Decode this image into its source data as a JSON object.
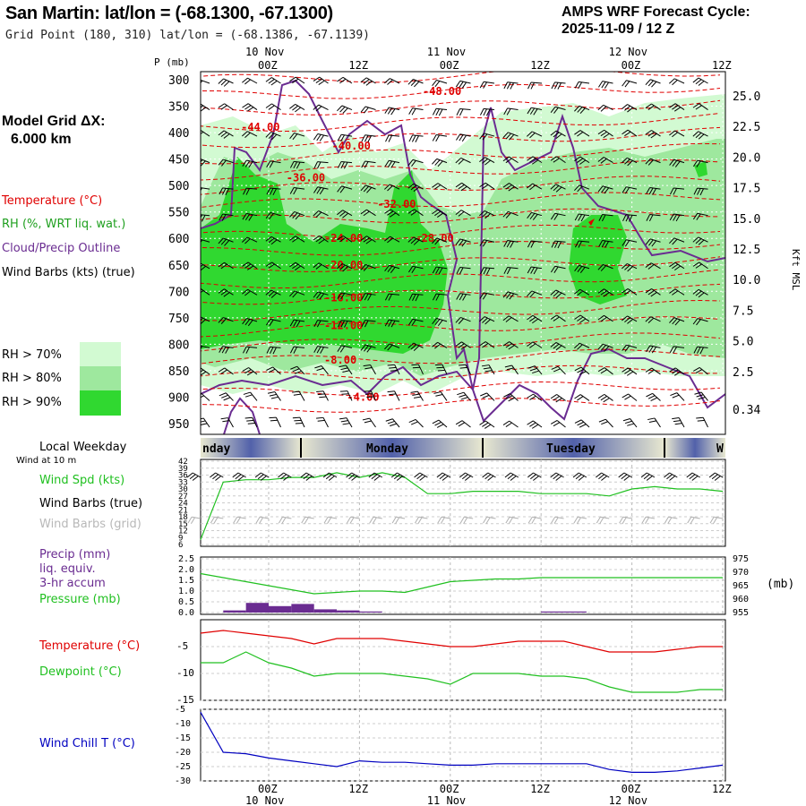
{
  "header": {
    "station_title": "San Martin:  lat/lon = (-68.1300, -67.1300)",
    "grid_point": "Grid Point (180, 310) lat/lon = (-68.1386, -67.1139)",
    "cycle_label": "AMPS WRF Forecast Cycle:",
    "cycle_value": "2025-11-09 / 12  Z"
  },
  "model_grid": {
    "label": "Model Grid ΔX:",
    "value": "6.000 km"
  },
  "colors": {
    "temperature": "#e00000",
    "rh": "#20a020",
    "cloud_outline": "#6a2c91",
    "wind_barbs_true": "#000000",
    "wind_barbs_grid": "#b0b0b0",
    "precip": "#6a2c91",
    "pressure": "#20c020",
    "dewpoint": "#20c020",
    "wind_chill": "#0000c0",
    "rh70": "#d2fad2",
    "rh80": "#9ee89e",
    "rh90": "#30d830"
  },
  "left_legend": {
    "temperature": "Temperature (°C)",
    "rh": "RH (%, WRT liq. wat.)",
    "cloud": "Cloud/Precip Outline",
    "wind": "Wind Barbs (kts) (true)",
    "rh70": "RH > 70%",
    "rh80": "RH > 80%",
    "rh90": "RH > 90%",
    "local_weekday": "Local Weekday",
    "wind_at": "Wind at 10 m",
    "wind_spd": "Wind Spd (kts)",
    "wind_barbs_true": "Wind Barbs (true)",
    "wind_barbs_grid": "Wind Barbs (grid)",
    "precip1": "Precip (mm)",
    "precip2": "liq. equiv.",
    "precip3": "3-hr accum",
    "pressure": "Pressure (mb)",
    "temperature2": "Temperature (°C)",
    "dewpoint": "Dewpoint (°C)",
    "windchill": "Wind Chill T (°C)"
  },
  "time_axis": {
    "hours": [
      "00Z",
      "12Z",
      "00Z",
      "12Z",
      "00Z",
      "12Z"
    ],
    "dates": [
      "10 Nov",
      "11 Nov",
      "12 Nov"
    ],
    "weekdays": [
      "nday",
      "Monday",
      "Tuesday",
      "W"
    ]
  },
  "chart_data": [
    {
      "type": "heatmap",
      "name": "vertical-cross-section",
      "ylabel": "P (mb)",
      "y2label": "Kft MSL",
      "pressure_ticks": [
        300,
        350,
        400,
        450,
        500,
        550,
        600,
        650,
        700,
        750,
        800,
        850,
        900,
        950
      ],
      "height_ticks": [
        "25.0",
        "22.5",
        "20.0",
        "17.5",
        "15.0",
        "12.5",
        "10.0",
        "7.5",
        "5.0",
        "2.5",
        "0.34"
      ],
      "temperature_contour_labels": [
        {
          "label": "-48.00",
          "hour": 22,
          "p": 322
        },
        {
          "label": "-44.00",
          "hour": -2,
          "p": 390
        },
        {
          "label": "-40.00",
          "hour": 10,
          "p": 425
        },
        {
          "label": "-36.00",
          "hour": 4,
          "p": 485
        },
        {
          "label": "-32.00",
          "hour": 16,
          "p": 535
        },
        {
          "label": "-28.00",
          "hour": 21,
          "p": 600
        },
        {
          "label": "-24.00",
          "hour": 9,
          "p": 600
        },
        {
          "label": "-20.00",
          "hour": 9,
          "p": 650
        },
        {
          "label": "-16.00",
          "hour": 9,
          "p": 712
        },
        {
          "label": "-12.00",
          "hour": 9,
          "p": 765
        },
        {
          "label": "-8.00",
          "hour": 9,
          "p": 830
        },
        {
          "label": "-4.00",
          "hour": 12,
          "p": 900
        }
      ]
    },
    {
      "type": "line",
      "name": "wind-speed",
      "ylabel": "Wind Spd (kts)",
      "yticks": [
        42,
        39,
        36,
        33,
        30,
        27,
        24,
        21,
        18,
        15,
        12,
        9,
        6
      ],
      "ylim": [
        6,
        42
      ],
      "x_hours": [
        -9,
        -6,
        -3,
        0,
        3,
        6,
        9,
        12,
        15,
        18,
        21,
        24,
        27,
        30,
        33,
        36,
        39,
        42,
        45,
        48,
        51,
        54,
        57,
        60
      ],
      "values": [
        8,
        33,
        34,
        34,
        35,
        35,
        37,
        35,
        37,
        35,
        28,
        28,
        29,
        29,
        29,
        28,
        28,
        28,
        27,
        30,
        31,
        30,
        30,
        29
      ]
    },
    {
      "type": "bar",
      "name": "precip-pressure",
      "ylabel": "Precip (mm)",
      "y2label": "(mb)",
      "precip_ticks": [
        "2.5",
        "2.0",
        "1.5",
        "1.0",
        "0.5",
        "0.0"
      ],
      "pressure_ticks": [
        975,
        970,
        965,
        960,
        955
      ],
      "precip_x_hours": [
        -6,
        -3,
        0,
        3,
        6,
        9,
        12,
        36,
        39
      ],
      "precip_values": [
        0.1,
        0.45,
        0.3,
        0.4,
        0.15,
        0.1,
        0.05,
        0.05,
        0.05
      ],
      "pressure_x_hours": [
        -9,
        -6,
        -3,
        0,
        3,
        6,
        9,
        12,
        15,
        18,
        21,
        24,
        27,
        30,
        33,
        36,
        39,
        42,
        45,
        48,
        51,
        54,
        57,
        60
      ],
      "pressure_values": [
        969.5,
        968,
        966.5,
        965,
        963.5,
        962,
        962.5,
        963,
        963,
        962.5,
        964.5,
        966.5,
        967,
        967.5,
        967.5,
        968,
        968,
        968,
        968,
        968,
        968,
        968,
        968,
        968
      ]
    },
    {
      "type": "line",
      "name": "temperature-dewpoint",
      "yticks": [
        -5,
        -10,
        -15
      ],
      "ylim": [
        -15,
        0
      ],
      "x_hours": [
        -9,
        -6,
        -3,
        0,
        3,
        6,
        9,
        12,
        15,
        18,
        21,
        24,
        27,
        30,
        33,
        36,
        39,
        42,
        45,
        48,
        51,
        54,
        57,
        60
      ],
      "series": [
        {
          "name": "Temperature (°C)",
          "values": [
            -2.5,
            -2,
            -2.5,
            -3,
            -3.5,
            -4.5,
            -3.5,
            -3.5,
            -3.5,
            -4,
            -4.5,
            -5,
            -5,
            -4.5,
            -4,
            -4,
            -4,
            -5,
            -6,
            -6,
            -6,
            -5.5,
            -5,
            -5
          ]
        },
        {
          "name": "Dewpoint (°C)",
          "values": [
            -8,
            -8,
            -6,
            -8,
            -9,
            -10.5,
            -10,
            -10,
            -10,
            -10.5,
            -11,
            -12,
            -10,
            -10,
            -10,
            -10.5,
            -10.5,
            -11,
            -12.5,
            -13.5,
            -13.5,
            -13.5,
            -13,
            -13
          ]
        }
      ]
    },
    {
      "type": "line",
      "name": "wind-chill",
      "ylabel": "Wind Chill T (°C)",
      "yticks": [
        -5,
        -10,
        -15,
        -20,
        -25,
        -30
      ],
      "ylim": [
        -30,
        -5
      ],
      "x_hours": [
        -9,
        -6,
        -3,
        0,
        3,
        6,
        9,
        12,
        15,
        18,
        21,
        24,
        27,
        30,
        33,
        36,
        39,
        42,
        45,
        48,
        51,
        54,
        57,
        60
      ],
      "values": [
        -6,
        -20,
        -20.5,
        -22,
        -23,
        -24,
        -25,
        -23,
        -23.5,
        -23.5,
        -24,
        -24.5,
        -24.5,
        -24,
        -24,
        -24,
        -24,
        -24,
        -26,
        -27,
        -27,
        -26.5,
        -25.5,
        -24.5
      ]
    }
  ]
}
